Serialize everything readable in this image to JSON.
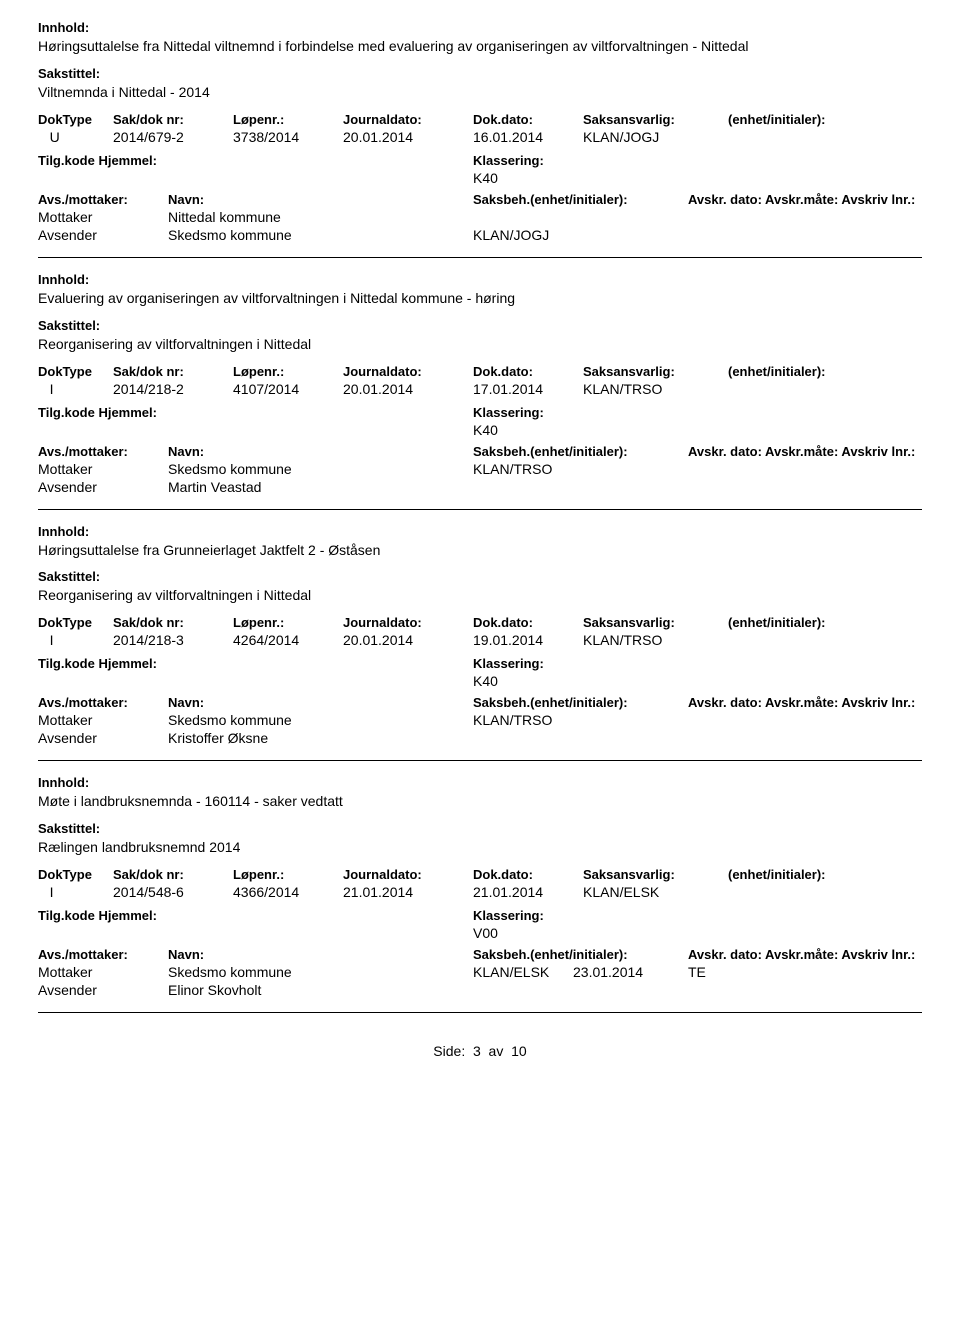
{
  "labels": {
    "innhold": "Innhold:",
    "sakstittel": "Sakstittel:",
    "doktype": "DokType",
    "sakdok": "Sak/dok nr:",
    "lopenr": "Løpenr.:",
    "journaldato": "Journaldato:",
    "dokdato": "Dok.dato:",
    "saksansvarlig": "Saksansvarlig:",
    "enhet": "(enhet/initialer):",
    "tilgkode": "Tilg.kode",
    "hjemmel": "Hjemmel:",
    "klassering": "Klassering:",
    "avsmottaker": "Avs./mottaker:",
    "navn": "Navn:",
    "saksbeh_enhet": "Saksbeh.(enhet/initialer):",
    "avskr_cols": "Avskr. dato:  Avskr.måte:  Avskriv lnr.:",
    "mottaker": "Mottaker",
    "avsender": "Avsender"
  },
  "records": [
    {
      "innhold": "Høringsuttalelse fra Nittedal viltnemnd i forbindelse med evaluering av organiseringen av viltforvaltningen - Nittedal",
      "sakstittel": "Viltnemnda i Nittedal - 2014",
      "doktype": "U",
      "sakdok": "2014/679-2",
      "lopenr": "3738/2014",
      "journaldato": "20.01.2014",
      "dokdato": "16.01.2014",
      "saksansvarlig": "KLAN/JOGJ",
      "klassering": "K40",
      "parties": [
        {
          "role": "Mottaker",
          "name": "Nittedal kommune",
          "saksbeh": "",
          "avdate": "",
          "avmate": ""
        },
        {
          "role": "Avsender",
          "name": "Skedsmo kommune",
          "saksbeh": "KLAN/JOGJ",
          "avdate": "",
          "avmate": ""
        }
      ]
    },
    {
      "innhold": "Evaluering av organiseringen av viltforvaltningen i Nittedal kommune - høring",
      "sakstittel": "Reorganisering av viltforvaltningen i Nittedal",
      "doktype": "I",
      "sakdok": "2014/218-2",
      "lopenr": "4107/2014",
      "journaldato": "20.01.2014",
      "dokdato": "17.01.2014",
      "saksansvarlig": "KLAN/TRSO",
      "klassering": "K40",
      "parties": [
        {
          "role": "Mottaker",
          "name": "Skedsmo kommune",
          "saksbeh": "KLAN/TRSO",
          "avdate": "",
          "avmate": ""
        },
        {
          "role": "Avsender",
          "name": "Martin Veastad",
          "saksbeh": "",
          "avdate": "",
          "avmate": ""
        }
      ]
    },
    {
      "innhold": "Høringsuttalelse fra Grunneierlaget Jaktfelt 2 - Øståsen",
      "sakstittel": "Reorganisering av viltforvaltningen i Nittedal",
      "doktype": "I",
      "sakdok": "2014/218-3",
      "lopenr": "4264/2014",
      "journaldato": "20.01.2014",
      "dokdato": "19.01.2014",
      "saksansvarlig": "KLAN/TRSO",
      "klassering": "K40",
      "parties": [
        {
          "role": "Mottaker",
          "name": "Skedsmo kommune",
          "saksbeh": "KLAN/TRSO",
          "avdate": "",
          "avmate": ""
        },
        {
          "role": "Avsender",
          "name": "Kristoffer Øksne",
          "saksbeh": "",
          "avdate": "",
          "avmate": ""
        }
      ]
    },
    {
      "innhold": "Møte i landbruksnemnda - 160114 - saker vedtatt",
      "sakstittel": "Rælingen landbruksnemnd 2014",
      "doktype": "I",
      "sakdok": "2014/548-6",
      "lopenr": "4366/2014",
      "journaldato": "21.01.2014",
      "dokdato": "21.01.2014",
      "saksansvarlig": "KLAN/ELSK",
      "klassering": "V00",
      "parties": [
        {
          "role": "Mottaker",
          "name": "Skedsmo kommune",
          "saksbeh": "KLAN/ELSK",
          "avdate": "23.01.2014",
          "avmate": "TE"
        },
        {
          "role": "Avsender",
          "name": "Elinor Skovholt",
          "saksbeh": "",
          "avdate": "",
          "avmate": ""
        }
      ]
    }
  ],
  "footer": {
    "prefix": "Side:",
    "page": "3",
    "sep": "av",
    "total": "10"
  }
}
